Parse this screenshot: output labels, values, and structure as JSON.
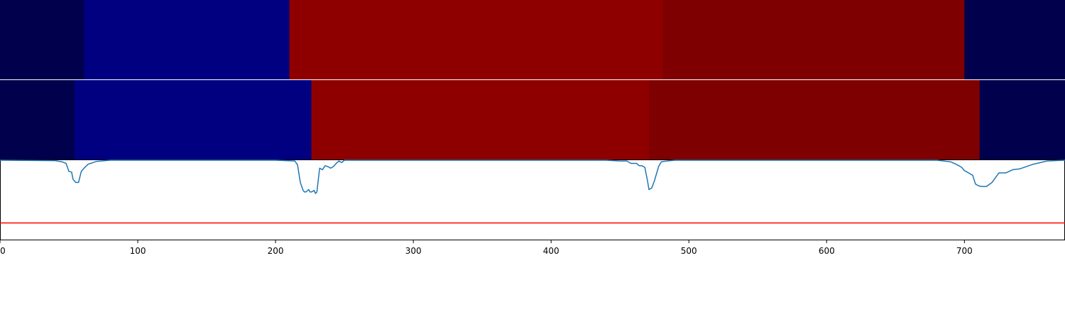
{
  "chart_data": {
    "type": "heatmap",
    "title": "",
    "xlabel": "",
    "ylabel": "",
    "xlim": [
      0,
      773
    ],
    "x_ticks": [
      0,
      100,
      200,
      300,
      400,
      500,
      600,
      700
    ],
    "x_tick_labels": [
      "0",
      "100",
      "200",
      "300",
      "400",
      "500",
      "600",
      "700"
    ],
    "grid": false,
    "legend": "none",
    "segment_rows": [
      {
        "segments": [
          {
            "start": 0,
            "end": 61,
            "color": "#00004d"
          },
          {
            "start": 61,
            "end": 210,
            "color": "#000080"
          },
          {
            "start": 210,
            "end": 481,
            "color": "#8e0000"
          },
          {
            "start": 481,
            "end": 700,
            "color": "#7f0000"
          },
          {
            "start": 700,
            "end": 773,
            "color": "#00004d"
          }
        ]
      },
      {
        "segments": [
          {
            "start": 0,
            "end": 54,
            "color": "#00004d"
          },
          {
            "start": 54,
            "end": 226,
            "color": "#000080"
          },
          {
            "start": 226,
            "end": 471,
            "color": "#8e0000"
          },
          {
            "start": 471,
            "end": 711,
            "color": "#7f0000"
          },
          {
            "start": 711,
            "end": 773,
            "color": "#00004d"
          }
        ]
      }
    ],
    "line_series": {
      "color": "#1f77b4",
      "ylim": [
        0,
        1
      ],
      "baseline": 1.0,
      "x": [
        0,
        40,
        45,
        48,
        50,
        52,
        53,
        55,
        57,
        59,
        61,
        64,
        70,
        80,
        200,
        214,
        216,
        218,
        220,
        221,
        222,
        224,
        225,
        226,
        228,
        229,
        230,
        232,
        234,
        236,
        238,
        240,
        242,
        244,
        246,
        248,
        250,
        300,
        440,
        450,
        455,
        458,
        460,
        462,
        464,
        466,
        468,
        470,
        471,
        473,
        475,
        478,
        480,
        484,
        490,
        520,
        680,
        690,
        695,
        698,
        700,
        702,
        704,
        706,
        708,
        710,
        712,
        714,
        716,
        720,
        725,
        730,
        735,
        740,
        750,
        760,
        773
      ],
      "y": [
        1.0,
        0.995,
        0.98,
        0.96,
        0.86,
        0.85,
        0.76,
        0.72,
        0.72,
        0.86,
        0.9,
        0.95,
        0.985,
        1.0,
        1.0,
        0.99,
        0.94,
        0.72,
        0.62,
        0.6,
        0.6,
        0.63,
        0.6,
        0.6,
        0.62,
        0.58,
        0.6,
        0.9,
        0.88,
        0.93,
        0.92,
        0.9,
        0.92,
        0.96,
        0.99,
        0.97,
        1.0,
        1.0,
        1.0,
        0.99,
        0.99,
        0.96,
        0.96,
        0.96,
        0.93,
        0.93,
        0.91,
        0.74,
        0.63,
        0.65,
        0.74,
        0.92,
        0.98,
        0.99,
        1.0,
        1.0,
        1.0,
        0.98,
        0.94,
        0.91,
        0.87,
        0.85,
        0.83,
        0.81,
        0.7,
        0.68,
        0.67,
        0.67,
        0.67,
        0.72,
        0.84,
        0.84,
        0.88,
        0.89,
        0.95,
        0.99,
        1.0
      ]
    },
    "threshold_line": {
      "value": 0.21,
      "color": "#ff0000"
    }
  }
}
